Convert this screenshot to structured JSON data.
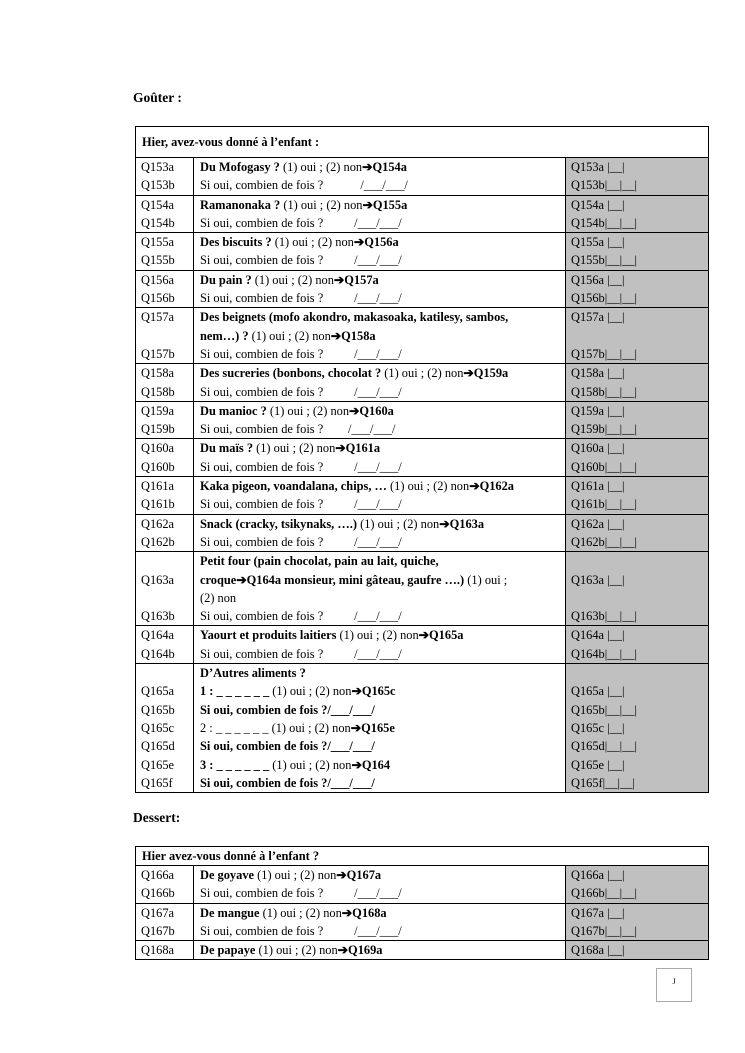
{
  "sections": [
    {
      "heading": "Goûter :",
      "table": {
        "header": "Hier, avez-vous donné  à l’enfant :",
        "rows": [
          {
            "codes": [
              "Q153a",
              "Q153b"
            ],
            "lines": [
              [
                {
                  "text": "Du Mofogasy ?",
                  "bold": true
                },
                {
                  "text": " (1) oui ; (2) non",
                  "bold": false
                },
                {
                  "text": "➔Q154a",
                  "bold": true
                }
              ],
              [
                {
                  "text": "Si oui, combien de fois ?            /___/___/",
                  "bold": false
                }
              ]
            ],
            "answers": [
              "Q153a |__|",
              "Q153b|__|__|"
            ]
          },
          {
            "codes": [
              "Q154a",
              "Q154b"
            ],
            "lines": [
              [
                {
                  "text": "Ramanonaka ?",
                  "bold": true
                },
                {
                  "text": " (1) oui ; (2) non",
                  "bold": false
                },
                {
                  "text": "➔Q155a",
                  "bold": true
                }
              ],
              [
                {
                  "text": "Si oui, combien de fois ?          /___/___/",
                  "bold": false
                }
              ]
            ],
            "answers": [
              "Q154a |__|",
              "Q154b|__|__|"
            ]
          },
          {
            "codes": [
              "Q155a",
              "Q155b"
            ],
            "lines": [
              [
                {
                  "text": "Des biscuits ?",
                  "bold": true
                },
                {
                  "text": " (1) oui ; (2) non",
                  "bold": false
                },
                {
                  "text": "➔Q156a",
                  "bold": true
                }
              ],
              [
                {
                  "text": "Si oui, combien de fois ?          /___/___/",
                  "bold": false
                }
              ]
            ],
            "answers": [
              "Q155a |__|",
              "Q155b|__|__|"
            ]
          },
          {
            "codes": [
              "Q156a",
              "Q156b"
            ],
            "lines": [
              [
                {
                  "text": "Du pain ?",
                  "bold": true
                },
                {
                  "text": " (1) oui ; (2) non",
                  "bold": false
                },
                {
                  "text": "➔Q157a",
                  "bold": true
                }
              ],
              [
                {
                  "text": "Si oui, combien de fois ?          /___/___/",
                  "bold": false
                }
              ]
            ],
            "answers": [
              "Q156a |__|",
              "Q156b|__|__|"
            ]
          },
          {
            "codes": [
              "Q157a",
              null,
              "Q157b"
            ],
            "lines": [
              [
                {
                  "text": "Des beignets (mofo akondro, makasoaka, katilesy, sambos,",
                  "bold": true
                }
              ],
              [
                {
                  "text": "nem…) ?",
                  "bold": true
                },
                {
                  "text": " (1) oui ; (2) non",
                  "bold": false
                },
                {
                  "text": "➔Q158a",
                  "bold": true
                }
              ],
              [
                {
                  "text": "Si oui, combien de fois ?          /___/___/",
                  "bold": false
                }
              ]
            ],
            "answers": [
              "Q157a |__|",
              null,
              "Q157b|__|__|"
            ]
          },
          {
            "codes": [
              "Q158a",
              "Q158b"
            ],
            "lines": [
              [
                {
                  "text": "Des sucreries (bonbons, chocolat ?",
                  "bold": true
                },
                {
                  "text": " (1) oui ; (2) non",
                  "bold": false
                },
                {
                  "text": "➔Q159a",
                  "bold": true
                }
              ],
              [
                {
                  "text": "Si oui, combien de fois ?          /___/___/",
                  "bold": false
                }
              ]
            ],
            "answers": [
              "Q158a |__|",
              "Q158b|__|__|"
            ]
          },
          {
            "codes": [
              "Q159a",
              "Q159b"
            ],
            "lines": [
              [
                {
                  "text": "Du manioc ?",
                  "bold": true
                },
                {
                  "text": " (1) oui ; (2) non",
                  "bold": false
                },
                {
                  "text": "➔Q160a",
                  "bold": true
                }
              ],
              [
                {
                  "text": "Si oui, combien de fois ?        /___/___/",
                  "bold": false
                }
              ]
            ],
            "answers": [
              "Q159a |__|",
              "Q159b|__|__|"
            ]
          },
          {
            "codes": [
              "Q160a",
              "Q160b"
            ],
            "lines": [
              [
                {
                  "text": "Du maïs ?",
                  "bold": true
                },
                {
                  "text": " (1) oui ; (2) non",
                  "bold": false
                },
                {
                  "text": "➔Q161a",
                  "bold": true
                }
              ],
              [
                {
                  "text": "Si oui, combien de fois ?          /___/___/",
                  "bold": false
                }
              ]
            ],
            "answers": [
              "Q160a |__|",
              "Q160b|__|__|"
            ]
          },
          {
            "codes": [
              "Q161a",
              "Q161b"
            ],
            "lines": [
              [
                {
                  "text": "Kaka pigeon, voandalana, chips, …",
                  "bold": true
                },
                {
                  "text": " (1) oui ; (2) non",
                  "bold": false
                },
                {
                  "text": "➔Q162a",
                  "bold": true
                }
              ],
              [
                {
                  "text": "Si oui, combien de fois ?          /___/___/",
                  "bold": false
                }
              ]
            ],
            "answers": [
              "Q161a |__|",
              "Q161b|__|__|"
            ]
          },
          {
            "codes": [
              "Q162a",
              "Q162b"
            ],
            "lines": [
              [
                {
                  "text": "Snack (cracky, tsikynaks, ….)",
                  "bold": true
                },
                {
                  "text": " (1) oui ; (2) non",
                  "bold": false
                },
                {
                  "text": "➔Q163a",
                  "bold": true
                }
              ],
              [
                {
                  "text": "Si oui, combien de fois ?          /___/___/",
                  "bold": false
                }
              ]
            ],
            "answers": [
              "Q162a |__|",
              "Q162b|__|__|"
            ]
          },
          {
            "codes": [
              null,
              "Q163a",
              null,
              "Q163b"
            ],
            "lines": [
              [
                {
                  "text": "Petit four (pain chocolat, pain au lait, quiche,",
                  "bold": true
                }
              ],
              [
                {
                  "text": "croque➔Q164a monsieur, mini gâteau, gaufre ….)",
                  "bold": true
                },
                {
                  "text": " (1) oui ;",
                  "bold": false
                }
              ],
              [
                {
                  "text": "(2) non",
                  "bold": false
                }
              ],
              [
                {
                  "text": "Si oui, combien de fois ?          /___/___/",
                  "bold": false
                }
              ]
            ],
            "answers": [
              null,
              "Q163a |__|",
              null,
              "Q163b|__|__|"
            ]
          },
          {
            "codes": [
              "Q164a",
              "Q164b"
            ],
            "lines": [
              [
                {
                  "text": "Yaourt et produits laitiers",
                  "bold": true
                },
                {
                  "text": " (1) oui ; (2) non",
                  "bold": false
                },
                {
                  "text": "➔Q165a",
                  "bold": true
                }
              ],
              [
                {
                  "text": "Si oui, combien de fois ?          /___/___/",
                  "bold": false
                }
              ]
            ],
            "answers": [
              "Q164a |__|",
              "Q164b|__|__|"
            ]
          },
          {
            "codes": [
              null,
              "Q165a",
              "Q165b",
              "Q165c",
              "Q165d",
              "Q165e",
              "Q165f"
            ],
            "lines": [
              [
                {
                  "text": "D’Autres aliments ?",
                  "bold": true
                }
              ],
              [
                {
                  "text": "1 : _ _ _ _ _ _",
                  "bold": true
                },
                {
                  "text": " (1) oui ; (2) non",
                  "bold": false
                },
                {
                  "text": "➔Q165c",
                  "bold": true
                }
              ],
              [
                {
                  "text": "Si oui, combien de fois ?/___/___/",
                  "bold": true
                }
              ],
              [
                {
                  "text": "2 : _ _ _ _ _ _ (1) oui ; (2) non",
                  "bold": false
                },
                {
                  "text": "➔Q165e",
                  "bold": true
                }
              ],
              [
                {
                  "text": "Si oui, combien de fois ?/___/___/",
                  "bold": true
                }
              ],
              [
                {
                  "text": "3 : _ _ _ _ _ _",
                  "bold": true
                },
                {
                  "text": " (1) oui ; (2) non",
                  "bold": false
                },
                {
                  "text": "➔Q164",
                  "bold": true
                }
              ],
              [
                {
                  "text": "Si oui, combien de fois ?/___/___/",
                  "bold": true
                }
              ]
            ],
            "answers": [
              null,
              "Q165a |__|",
              "Q165b|__|__|",
              "Q165c |__|",
              "Q165d|__|__|",
              "Q165e |__|",
              "Q165f|__|__|"
            ]
          }
        ]
      }
    },
    {
      "heading": "Dessert:",
      "table": {
        "header": "Hier avez-vous donné à l’enfant ?",
        "rows": [
          {
            "codes": [
              "Q166a",
              "Q166b"
            ],
            "lines": [
              [
                {
                  "text": "De goyave",
                  "bold": true
                },
                {
                  "text": " (1) oui ; (2) non",
                  "bold": false
                },
                {
                  "text": "➔Q167a",
                  "bold": true
                }
              ],
              [
                {
                  "text": "Si oui, combien de fois ?          /___/___/",
                  "bold": false
                }
              ]
            ],
            "answers": [
              "Q166a |__|",
              "Q166b|__|__|"
            ]
          },
          {
            "codes": [
              "Q167a",
              "Q167b"
            ],
            "lines": [
              [
                {
                  "text": "De mangue",
                  "bold": true
                },
                {
                  "text": " (1) oui ; (2) non",
                  "bold": false
                },
                {
                  "text": "➔Q168a",
                  "bold": true
                }
              ],
              [
                {
                  "text": "Si oui, combien de fois ?          /___/___/",
                  "bold": false
                }
              ]
            ],
            "answers": [
              "Q167a |__|",
              "Q167b|__|__|"
            ]
          },
          {
            "codes": [
              "Q168a"
            ],
            "lines": [
              [
                {
                  "text": "De papaye",
                  "bold": true
                },
                {
                  "text": " (1) oui ; (2) non",
                  "bold": false
                },
                {
                  "text": "➔Q169a",
                  "bold": true
                }
              ]
            ],
            "answers": [
              "Q168a |__|"
            ]
          }
        ]
      }
    }
  ],
  "page_marker": "J"
}
